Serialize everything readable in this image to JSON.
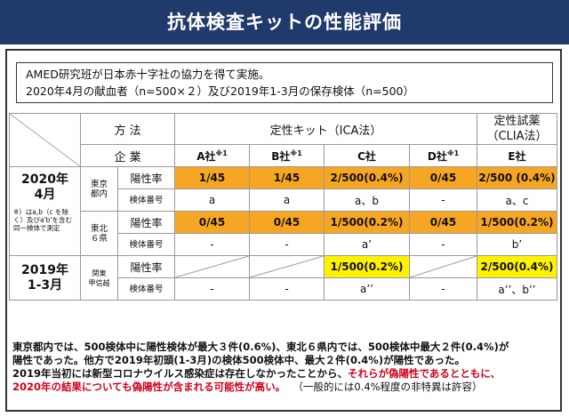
{
  "title": "抗体検査キットの性能評価",
  "info": {
    "line1": "AMED研究班が日本赤十字社の協力を得て実施。",
    "line2": "2020年4月の献血者（n=500×２）及び2019年1-3月の保存検体（n=500）"
  },
  "table": {
    "method_label": "方 法",
    "method_qual": "定性キット（ICA法）",
    "method_clia": "定性試薬\n（CLIA法）",
    "company_label": "企 業",
    "note_mark": "※1",
    "companies": [
      "A社",
      "B社",
      "C社",
      "D社",
      "E社"
    ],
    "group_2020": "2020年\n4月",
    "group_2020_note": "※）はa,b（c を除く）及びa'b'を含む同一検体で測定",
    "region_tokyo": "東京\n都内",
    "region_tohoku": "東北\n６県",
    "group_2019": "2019年\n1-3月",
    "region_kanto": "関東\n甲信越",
    "positive_label": "陽性率",
    "sample_label": "検体番号",
    "tokyo_positive": [
      "1/45",
      "1/45",
      "2/500(0.4%)",
      "0/45",
      "2/500 (0.4%)"
    ],
    "tokyo_sample": [
      "a",
      "a",
      "a、b",
      "-",
      "a、c"
    ],
    "tohoku_positive": [
      "0/45",
      "0/45",
      "1/500(0.2%)",
      "0/45",
      "1/500(0.2%)"
    ],
    "tohoku_sample": [
      "-",
      "-",
      "a’",
      "-",
      "b’"
    ],
    "kanto_positive_c": "1/500(0.2%)",
    "kanto_positive_e": "2/500(0.4%)",
    "kanto_sample": [
      "-",
      "-",
      "a’’",
      "-",
      "a’’、b’’"
    ]
  },
  "footer": {
    "line1": "東京都内では、500検体中に陽性検体が最大３件(0.6%)、東北６県内では、500検体中最大２件(0.4%)が",
    "line2": "陽性であった。他方で2019年初頭(1-3月)の検体500検体中、最大２件(0.4%)が陽性であった。",
    "line3a": "2019年当初には新型コロナウイルス感染症は存在しなかったことから、",
    "line3b": "それらが偽陽性であるとともに、",
    "line4a": "2020年の結果についても偽陽性が含まれる可能性が高い。",
    "line4b": "（一般的には0.4%程度の非特異は許容）"
  },
  "colors": {
    "header_bg": "#1f3a6b",
    "orange": "#f6a623",
    "yellow": "#fff200",
    "red": "#d0021b"
  }
}
